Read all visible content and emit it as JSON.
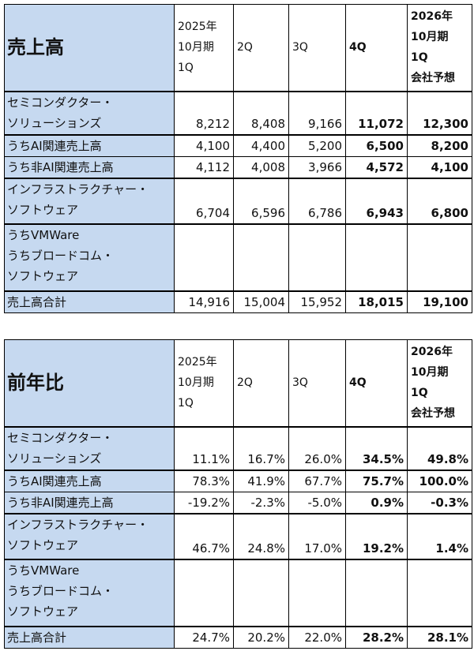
{
  "tables": [
    {
      "title": "売上高",
      "columns": [
        [
          "2025年",
          "10月期",
          "1Q"
        ],
        [
          "2Q"
        ],
        [
          "3Q"
        ],
        [
          "4Q"
        ],
        [
          "2026年",
          "10月期",
          "1Q",
          "会社予想"
        ]
      ],
      "rows": [
        {
          "label": [
            "セミコンダクター・",
            "ソリューションズ"
          ],
          "values": [
            "8,212",
            "8,408",
            "9,166",
            "11,072",
            "12,300"
          ]
        },
        {
          "label": [
            "うちAI関連売上高"
          ],
          "values": [
            "4,100",
            "4,400",
            "5,200",
            "6,500",
            "8,200"
          ]
        },
        {
          "label": [
            "うち非AI関連売上高"
          ],
          "values": [
            "4,112",
            "4,008",
            "3,966",
            "4,572",
            "4,100"
          ]
        },
        {
          "label": [
            "インフラストラクチャー・",
            "ソフトウェア"
          ],
          "values": [
            "6,704",
            "6,596",
            "6,786",
            "6,943",
            "6,800"
          ]
        },
        {
          "label": [
            "うちVMWare",
            "うちブロードコム・",
            "ソフトウェア"
          ],
          "values": []
        },
        {
          "label": [
            "売上高合計"
          ],
          "values": [
            "14,916",
            "15,004",
            "15,952",
            "18,015",
            "19,100"
          ]
        }
      ]
    },
    {
      "title": "前年比",
      "columns": [
        [
          "2025年",
          "10月期",
          "1Q"
        ],
        [
          "2Q"
        ],
        [
          "3Q"
        ],
        [
          "4Q"
        ],
        [
          "2026年",
          "10月期",
          "1Q",
          "会社予想"
        ]
      ],
      "rows": [
        {
          "label": [
            "セミコンダクター・",
            "ソリューションズ"
          ],
          "values": [
            "11.1%",
            "16.7%",
            "26.0%",
            "34.5%",
            "49.8%"
          ]
        },
        {
          "label": [
            "うちAI関連売上高"
          ],
          "values": [
            "78.3%",
            "41.9%",
            "67.7%",
            "75.7%",
            "100.0%"
          ]
        },
        {
          "label": [
            "うち非AI関連売上高"
          ],
          "values": [
            "-19.2%",
            "-2.3%",
            "-5.0%",
            "0.9%",
            "-0.3%"
          ]
        },
        {
          "label": [
            "インフラストラクチャー・",
            "ソフトウェア"
          ],
          "values": [
            "46.7%",
            "24.8%",
            "17.0%",
            "19.2%",
            "1.4%"
          ]
        },
        {
          "label": [
            "うちVMWare",
            "うちブロードコム・",
            "ソフトウェア"
          ],
          "values": []
        },
        {
          "label": [
            "売上高合計"
          ],
          "values": [
            "24.7%",
            "20.2%",
            "22.0%",
            "28.2%",
            "28.1%"
          ]
        }
      ]
    }
  ]
}
